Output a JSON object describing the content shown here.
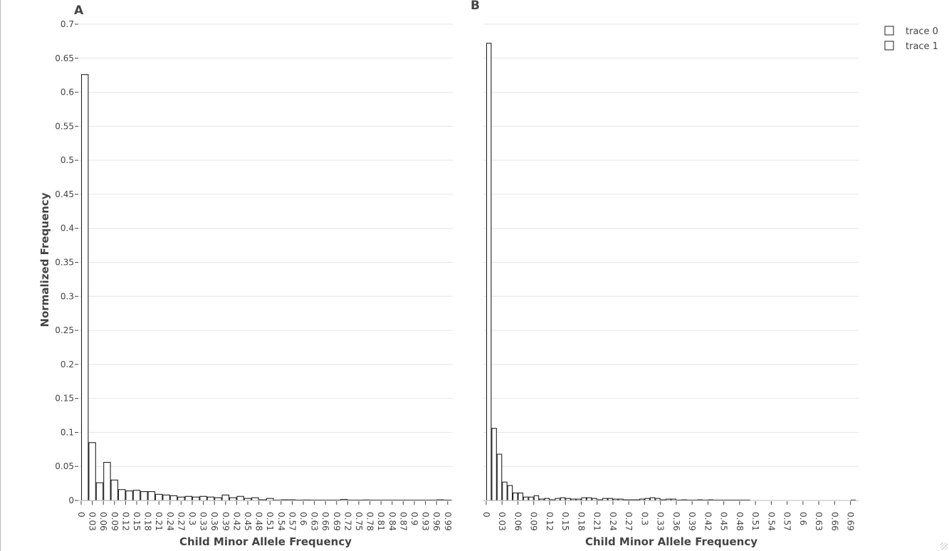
{
  "chart_data": [
    {
      "type": "bar",
      "panel_label": "A",
      "title": "",
      "xlabel": "Child Minor Allele Frequency",
      "ylabel": "Normalized Frequency",
      "ylim": [
        0,
        0.7
      ],
      "xlim": [
        0,
        1.0
      ],
      "bin_width": 0.02,
      "y_ticks": [
        0,
        0.05,
        0.1,
        0.15,
        0.2,
        0.25,
        0.3,
        0.35,
        0.4,
        0.45,
        0.5,
        0.55,
        0.6,
        0.65,
        0.7
      ],
      "y_tick_labels": [
        "0",
        "0.05",
        "0.1",
        "0.15",
        "0.2",
        "0.25",
        "0.3",
        "0.35",
        "0.4",
        "0.45",
        "0.5",
        "0.55",
        "0.6",
        "0.65",
        "0.7"
      ],
      "x_ticks": [
        0,
        0.03,
        0.06,
        0.09,
        0.12,
        0.15,
        0.18,
        0.21,
        0.24,
        0.27,
        0.3,
        0.33,
        0.36,
        0.39,
        0.42,
        0.45,
        0.48,
        0.51,
        0.54,
        0.57,
        0.6,
        0.63,
        0.66,
        0.69,
        0.72,
        0.75,
        0.78,
        0.81,
        0.84,
        0.87,
        0.9,
        0.93,
        0.96,
        0.99
      ],
      "x_tick_labels": [
        "0",
        "0.03",
        "0.06",
        "0.09",
        "0.12",
        "0.15",
        "0.18",
        "0.21",
        "0.24",
        "0.27",
        "0.3",
        "0.33",
        "0.36",
        "0.39",
        "0.42",
        "0.45",
        "0.48",
        "0.51",
        "0.54",
        "0.57",
        "0.6",
        "0.63",
        "0.66",
        "0.69",
        "0.72",
        "0.75",
        "0.78",
        "0.81",
        "0.84",
        "0.87",
        "0.9",
        "0.93",
        "0.96",
        "0.99"
      ],
      "grid": true,
      "x": [
        0,
        0.02,
        0.04,
        0.06,
        0.08,
        0.1,
        0.12,
        0.14,
        0.16,
        0.18,
        0.2,
        0.22,
        0.24,
        0.26,
        0.28,
        0.3,
        0.32,
        0.34,
        0.36,
        0.38,
        0.4,
        0.42,
        0.44,
        0.46,
        0.48,
        0.5,
        0.52,
        0.54,
        0.56,
        0.58,
        0.6,
        0.62,
        0.64,
        0.66,
        0.68,
        0.7,
        0.72,
        0.74,
        0.76,
        0.78,
        0.8,
        0.82,
        0.84,
        0.86,
        0.88,
        0.9,
        0.92,
        0.94,
        0.96,
        0.98
      ],
      "values": [
        0.626,
        0.085,
        0.026,
        0.056,
        0.03,
        0.016,
        0.014,
        0.015,
        0.013,
        0.013,
        0.009,
        0.008,
        0.007,
        0.005,
        0.006,
        0.005,
        0.006,
        0.005,
        0.004,
        0.008,
        0.004,
        0.006,
        0.003,
        0.004,
        0.001,
        0.003,
        0.0005,
        0.001,
        0.001,
        0.0005,
        0.0008,
        0.0006,
        0.0005,
        0.0005,
        0.0003,
        0.0015,
        0.0003,
        0.0002,
        0.0008,
        0.0002,
        0.0002,
        0.0002,
        0.0002,
        0.0002,
        0.0002,
        0.0002,
        0.0002,
        0.0002,
        0.001,
        0.0002
      ]
    },
    {
      "type": "bar",
      "panel_label": "B",
      "title": "",
      "xlabel": "Child Minor Allele Frequency",
      "ylabel": "",
      "ylim": [
        0,
        0.7
      ],
      "xlim": [
        0,
        0.7
      ],
      "bin_width": 0.01,
      "x_ticks": [
        0,
        0.03,
        0.06,
        0.09,
        0.12,
        0.15,
        0.18,
        0.21,
        0.24,
        0.27,
        0.3,
        0.33,
        0.36,
        0.39,
        0.42,
        0.45,
        0.48,
        0.51,
        0.54,
        0.57,
        0.6,
        0.63,
        0.66,
        0.69
      ],
      "x_tick_labels": [
        "0",
        "0.03",
        "0.06",
        "0.09",
        "0.12",
        "0.15",
        "0.18",
        "0.21",
        "0.24",
        "0.27",
        "0.3",
        "0.33",
        "0.36",
        "0.39",
        "0.42",
        "0.45",
        "0.48",
        "0.51",
        "0.54",
        "0.57",
        "0.6",
        "0.63",
        "0.66",
        "0.69"
      ],
      "grid": true,
      "x": [
        0,
        0.01,
        0.02,
        0.03,
        0.04,
        0.05,
        0.06,
        0.07,
        0.08,
        0.09,
        0.1,
        0.11,
        0.12,
        0.13,
        0.14,
        0.15,
        0.16,
        0.17,
        0.18,
        0.19,
        0.2,
        0.21,
        0.22,
        0.23,
        0.24,
        0.25,
        0.26,
        0.27,
        0.28,
        0.29,
        0.3,
        0.31,
        0.32,
        0.33,
        0.34,
        0.35,
        0.36,
        0.37,
        0.38,
        0.39,
        0.4,
        0.41,
        0.42,
        0.43,
        0.44,
        0.45,
        0.46,
        0.47,
        0.48,
        0.49,
        0.69
      ],
      "values": [
        0.672,
        0.106,
        0.068,
        0.027,
        0.022,
        0.011,
        0.011,
        0.005,
        0.005,
        0.007,
        0.002,
        0.003,
        0.001,
        0.003,
        0.004,
        0.003,
        0.002,
        0.002,
        0.004,
        0.004,
        0.003,
        0.001,
        0.003,
        0.003,
        0.002,
        0.002,
        0.001,
        0.001,
        0.001,
        0.002,
        0.003,
        0.004,
        0.003,
        0.001,
        0.002,
        0.002,
        0.0005,
        0.001,
        0.0005,
        0.0005,
        0.001,
        0.0005,
        0.001,
        0.0005,
        0.0005,
        0.0005,
        0.0005,
        0.0005,
        0.0005,
        0.0003,
        0.0005
      ]
    }
  ],
  "legend": {
    "placement": "top-right",
    "entries": [
      "trace 0",
      "trace 1"
    ]
  },
  "colors": {
    "bar_fill": "#ffffff",
    "bar_stroke": "#222222",
    "grid": "#e6e6e6",
    "text": "#444444"
  }
}
